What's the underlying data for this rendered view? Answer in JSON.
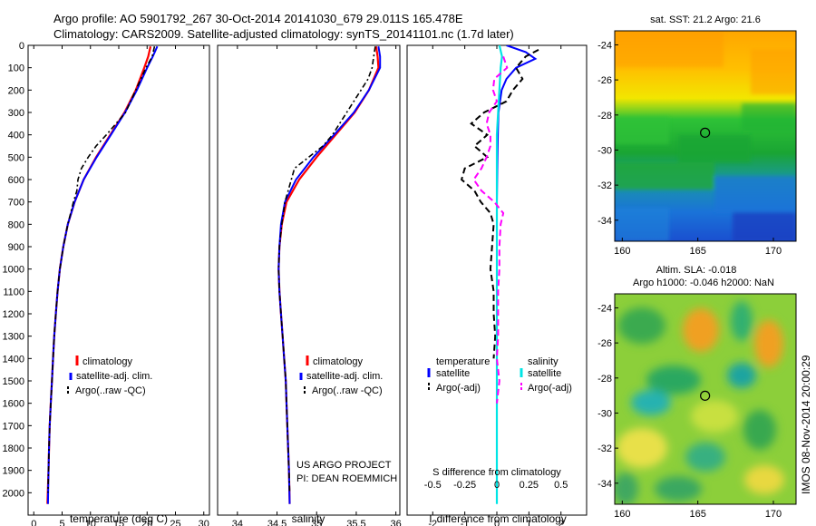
{
  "title": {
    "line1": "Argo profile: AO 5901792_267 30-Oct-2014 20141030_679 29.011S 165.478E",
    "line2": "Climatology: CARS2009. Satellite-adjusted climatology: synTS_20141101.nc (1.7d later)"
  },
  "side_text": "IMOS 08-Nov-2014 20:00:29",
  "project_text": {
    "line1": "US ARGO PROJECT",
    "line2": "PI: DEAN ROEMMICH"
  },
  "colors": {
    "climatology": "#ff0000",
    "satellite": "#0000ff",
    "argo": "#000000",
    "sal_satellite": "#00e5e5",
    "sal_argo": "#ff00ff"
  },
  "chart_data": [
    {
      "type": "line",
      "panel": "temperature",
      "xlabel": "temperature (deg C)",
      "ylabel": "",
      "xlim": [
        -1,
        31
      ],
      "ylim": [
        2100,
        0
      ],
      "xticks": [
        "0",
        "5",
        "10",
        "15",
        "20",
        "25",
        "30"
      ],
      "yticks": [
        "0",
        "100",
        "200",
        "300",
        "400",
        "500",
        "600",
        "700",
        "800",
        "900",
        "1000",
        "1100",
        "1200",
        "1300",
        "1400",
        "1500",
        "1600",
        "1700",
        "1800",
        "1900",
        "2000"
      ],
      "legend": [
        "climatology",
        "satellite-adj. clim.",
        "Argo(..raw -QC)"
      ],
      "series": [
        {
          "name": "climatology",
          "depth": [
            5,
            50,
            100,
            200,
            300,
            400,
            500,
            600,
            700,
            800,
            900,
            1000,
            1100,
            1200,
            1300,
            1400,
            1500,
            1600,
            1700,
            1800,
            1900,
            2050
          ],
          "values": [
            20.6,
            20.2,
            19.5,
            18.0,
            16.0,
            13.5,
            11.0,
            8.8,
            7.2,
            6.0,
            5.2,
            4.6,
            4.2,
            3.9,
            3.6,
            3.4,
            3.2,
            3.0,
            2.8,
            2.7,
            2.6,
            2.4
          ]
        },
        {
          "name": "satellite-adj. clim.",
          "depth": [
            5,
            50,
            100,
            200,
            300,
            400,
            500,
            600,
            700,
            800,
            900,
            1000,
            1100,
            1200,
            1300,
            1400,
            1500,
            1600,
            1700,
            1800,
            1900,
            2050
          ],
          "values": [
            21.8,
            21.0,
            20.0,
            18.2,
            16.1,
            13.6,
            11.1,
            8.8,
            7.2,
            6.0,
            5.2,
            4.6,
            4.2,
            3.9,
            3.6,
            3.4,
            3.2,
            3.0,
            2.8,
            2.7,
            2.6,
            2.5
          ]
        },
        {
          "name": "Argo(..raw -QC)",
          "depth": [
            5,
            50,
            100,
            200,
            300,
            400,
            450,
            500,
            550,
            600,
            650,
            700,
            800,
            900,
            1000,
            1100,
            1200,
            1300,
            1400,
            1500,
            1600,
            1700,
            1800,
            1900,
            2000
          ],
          "values": [
            21.3,
            20.9,
            19.8,
            18.0,
            16.2,
            12.8,
            11.0,
            9.6,
            8.4,
            7.8,
            7.6,
            7.0,
            6.0,
            5.2,
            4.6,
            4.2,
            3.9,
            3.6,
            3.4,
            3.2,
            3.0,
            2.8,
            2.7,
            2.6,
            2.5
          ]
        }
      ]
    },
    {
      "type": "line",
      "panel": "salinity",
      "xlabel": "salinity",
      "ylabel": "",
      "xlim": [
        33.75,
        36.05
      ],
      "ylim": [
        2100,
        0
      ],
      "xticks": [
        "34",
        "34.5",
        "35",
        "35.5",
        "36"
      ],
      "legend": [
        "climatology",
        "satellite-adj. clim.",
        "Argo(..raw -QC)"
      ],
      "series": [
        {
          "name": "climatology",
          "depth": [
            5,
            50,
            100,
            200,
            300,
            400,
            500,
            600,
            700,
            800,
            900,
            1000,
            1100,
            1200,
            1300,
            1400,
            1500,
            1600,
            1700,
            1800,
            1900,
            2050
          ],
          "values": [
            35.75,
            35.77,
            35.78,
            35.66,
            35.48,
            35.24,
            35.0,
            34.78,
            34.62,
            34.56,
            34.53,
            34.52,
            34.53,
            34.55,
            34.57,
            34.59,
            34.61,
            34.62,
            34.63,
            34.64,
            34.65,
            34.66
          ]
        },
        {
          "name": "satellite-adj. clim.",
          "depth": [
            5,
            50,
            100,
            200,
            300,
            400,
            500,
            600,
            700,
            800,
            900,
            1000,
            1100,
            1200,
            1300,
            1400,
            1500,
            1600,
            1700,
            1800,
            1900,
            2050
          ],
          "values": [
            35.78,
            35.8,
            35.8,
            35.66,
            35.47,
            35.22,
            34.96,
            34.74,
            34.6,
            34.55,
            34.53,
            34.52,
            34.53,
            34.55,
            34.57,
            34.59,
            34.61,
            34.62,
            34.63,
            34.64,
            34.65,
            34.66
          ]
        },
        {
          "name": "Argo(..raw -QC)",
          "depth": [
            5,
            50,
            100,
            150,
            200,
            300,
            400,
            450,
            500,
            550,
            600,
            650,
            700,
            800,
            900,
            1000,
            1100,
            1200,
            1300,
            1400,
            1500,
            1600,
            1700,
            1800,
            1900,
            2000
          ],
          "values": [
            35.74,
            35.72,
            35.7,
            35.65,
            35.56,
            35.38,
            35.2,
            35.08,
            34.9,
            34.72,
            34.68,
            34.64,
            34.6,
            34.56,
            34.53,
            34.52,
            34.53,
            34.55,
            34.57,
            34.59,
            34.61,
            34.62,
            34.63,
            34.64,
            34.65,
            34.66
          ]
        }
      ]
    },
    {
      "type": "line",
      "panel": "difference",
      "xlabel": "T difference from climatology",
      "xlabel2": "S difference from climatology",
      "xlim": [
        -2.8,
        2.8
      ],
      "ylim": [
        2100,
        0
      ],
      "xticks": [
        "-2",
        "-1",
        "0",
        "1",
        "2"
      ],
      "xticks_s": [
        "-0.5",
        "-0.25",
        "0",
        "0.25",
        "0.5"
      ],
      "legend_headers": [
        "temperature",
        "salinity"
      ],
      "legend": [
        "satellite",
        "Argo(-adj)",
        "satellite",
        "Argo(-adj)"
      ],
      "series": [
        {
          "name": "satellite",
          "quantity": "temperature",
          "depth": [
            0,
            30,
            60,
            100,
            150,
            200,
            300,
            400,
            500,
            700,
            1000,
            1500,
            2000
          ],
          "values": [
            0.3,
            0.9,
            1.2,
            0.6,
            0.3,
            0.15,
            0.05,
            0.03,
            0.02,
            0.0,
            0.0,
            0.0,
            0.0
          ]
        },
        {
          "name": "Argo(-adj)",
          "quantity": "temperature",
          "depth": [
            20,
            50,
            100,
            150,
            200,
            250,
            300,
            350,
            400,
            450,
            500,
            550,
            600,
            650,
            700,
            750,
            800,
            900,
            1000,
            1100,
            1200,
            1300,
            1400
          ],
          "values": [
            1.3,
            0.9,
            0.6,
            0.8,
            0.5,
            0.3,
            -0.4,
            -0.8,
            -0.3,
            -0.7,
            -0.3,
            -1.0,
            -1.1,
            -0.7,
            -0.5,
            -0.2,
            -0.1,
            -0.15,
            -0.2,
            -0.1,
            -0.1,
            -0.05,
            -0.1
          ]
        },
        {
          "name": "satellite",
          "quantity": "salinity",
          "depth": [
            0,
            50,
            100,
            200,
            300,
            400,
            500,
            700,
            1000,
            1500,
            2050
          ],
          "values": [
            0.02,
            0.04,
            0.03,
            0.02,
            0.01,
            0.0,
            0.0,
            0.0,
            0.0,
            0.0,
            0.0
          ]
        },
        {
          "name": "Argo(-adj)",
          "quantity": "salinity",
          "depth": [
            50,
            100,
            150,
            200,
            250,
            300,
            350,
            400,
            450,
            500,
            550,
            600,
            650,
            700,
            750,
            800,
            900,
            1000,
            1100,
            1200,
            1300,
            1400,
            1500,
            1600
          ],
          "values": [
            0.05,
            0.08,
            -0.02,
            -0.03,
            0.0,
            -0.06,
            -0.08,
            -0.05,
            -0.05,
            -0.08,
            -0.12,
            -0.18,
            -0.12,
            -0.02,
            0.05,
            0.03,
            0.02,
            0.02,
            0.01,
            0.01,
            0.01,
            0.0,
            0.02,
            0.0
          ]
        }
      ]
    },
    {
      "type": "heatmap",
      "panel": "sat-sst-map",
      "title": "sat. SST: 21.2 Argo: 21.6",
      "xlim": [
        159.5,
        171.5
      ],
      "ylim": [
        -35.2,
        -23.2
      ],
      "xticks": [
        "160",
        "165",
        "170"
      ],
      "yticks": [
        "-24",
        "-26",
        "-28",
        "-30",
        "-32",
        "-34"
      ],
      "marker": {
        "lon": 165.478,
        "lat": -29.011
      }
    },
    {
      "type": "heatmap",
      "panel": "altim-sla-map",
      "title": "Altim. SLA: -0.018",
      "subtitle": "Argo h1000: -0.046 h2000: NaN",
      "xlim": [
        159.5,
        171.5
      ],
      "ylim": [
        -35.2,
        -23.2
      ],
      "xticks": [
        "160",
        "165",
        "170"
      ],
      "yticks": [
        "-24",
        "-26",
        "-28",
        "-30",
        "-32",
        "-34"
      ],
      "marker": {
        "lon": 165.478,
        "lat": -29.011
      }
    }
  ]
}
